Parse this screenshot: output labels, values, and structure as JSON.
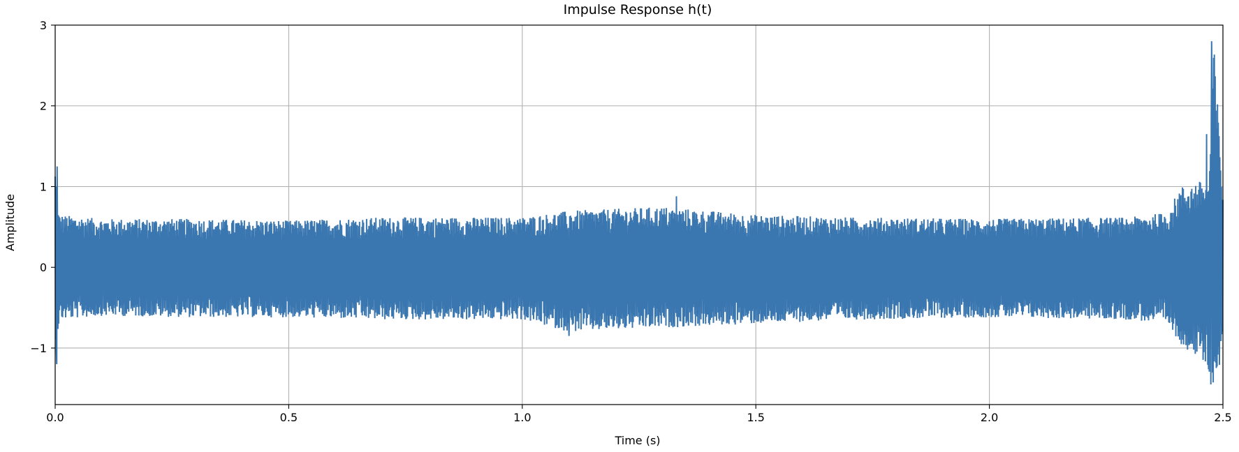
{
  "chart_data": {
    "type": "line",
    "title": "Impulse Response h(t)",
    "xlabel": "Time (s)",
    "ylabel": "Amplitude",
    "xlim": [
      0.0,
      2.5
    ],
    "ylim": [
      -1.7,
      3.0
    ],
    "grid": true,
    "x_ticks": [
      {
        "value": 0.0,
        "label": "0.0"
      },
      {
        "value": 0.5,
        "label": "0.5"
      },
      {
        "value": 1.0,
        "label": "1.0"
      },
      {
        "value": 1.5,
        "label": "1.5"
      },
      {
        "value": 2.0,
        "label": "2.0"
      },
      {
        "value": 2.5,
        "label": "2.5"
      }
    ],
    "y_ticks": [
      {
        "value": -1,
        "label": "−1"
      },
      {
        "value": 0,
        "label": "0"
      },
      {
        "value": 1,
        "label": "1"
      },
      {
        "value": 2,
        "label": "2"
      },
      {
        "value": 3,
        "label": "3"
      }
    ],
    "series": [
      {
        "color": "#3a76af",
        "description": "dense noise-like waveform sampled over 0–2.5 s",
        "envelope": {
          "t": [
            0.0,
            0.002,
            0.004,
            0.01,
            0.1,
            0.3,
            0.5,
            0.7,
            1.0,
            1.1,
            1.3,
            1.5,
            1.7,
            2.0,
            2.3,
            2.38,
            2.41,
            2.44,
            2.47,
            2.48,
            2.5
          ],
          "max": [
            1.25,
            1.1,
            0.75,
            0.65,
            0.6,
            0.6,
            0.58,
            0.62,
            0.62,
            0.7,
            0.75,
            0.65,
            0.62,
            0.6,
            0.62,
            0.68,
            1.0,
            1.05,
            1.1,
            2.8,
            1.0
          ],
          "min": [
            -1.2,
            -1.1,
            -0.85,
            -0.65,
            -0.6,
            -0.62,
            -0.62,
            -0.65,
            -0.65,
            -0.8,
            -0.75,
            -0.7,
            -0.65,
            -0.62,
            -0.65,
            -0.7,
            -0.95,
            -1.1,
            -1.3,
            -1.45,
            -1.1
          ]
        },
        "peaks": [
          {
            "t": 0.004,
            "value": 1.25
          },
          {
            "t": 0.003,
            "value": -1.2
          },
          {
            "t": 1.1,
            "value": -0.85
          },
          {
            "t": 1.33,
            "value": 0.88
          },
          {
            "t": 2.465,
            "value": 1.65
          },
          {
            "t": 2.476,
            "value": 2.8
          },
          {
            "t": 2.474,
            "value": -1.45
          }
        ]
      }
    ]
  }
}
